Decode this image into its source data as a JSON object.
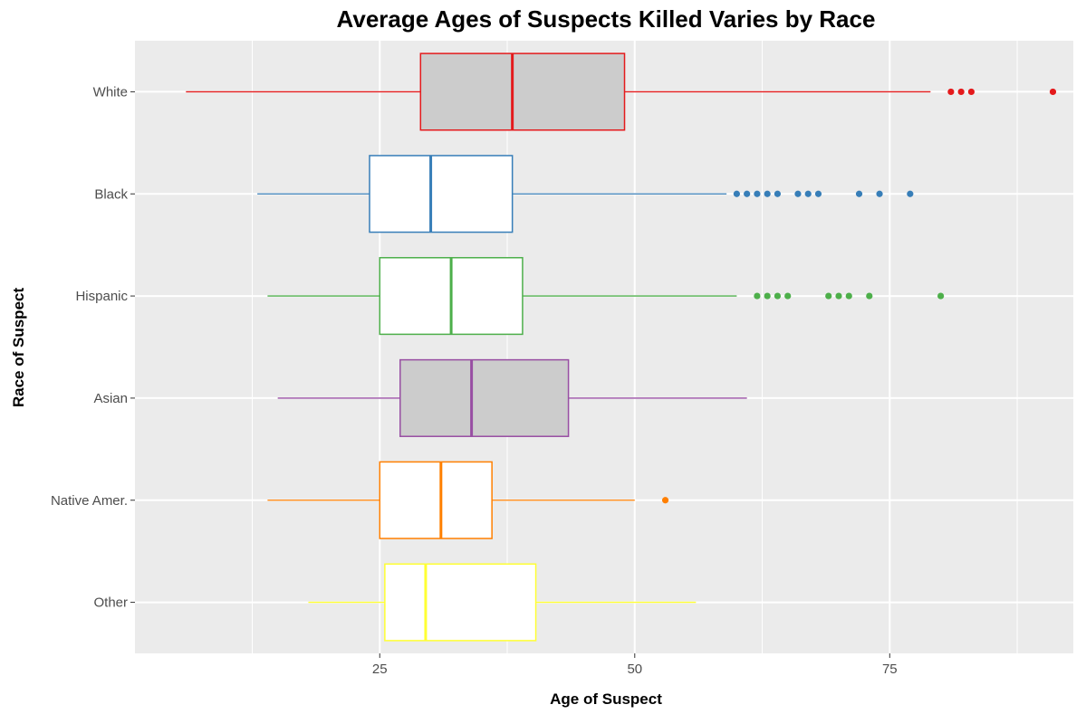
{
  "chart_data": {
    "type": "boxplot",
    "orientation": "horizontal",
    "title": "Average Ages of Suspects Killed Varies by Race",
    "xlabel": "Age of Suspect",
    "ylabel": "Race of Suspect",
    "xlim": [
      1,
      93
    ],
    "xticks": [
      25,
      50,
      75
    ],
    "xtick_labels": [
      "25",
      "50",
      "75"
    ],
    "grid": true,
    "legend": "none",
    "categories": [
      "White",
      "Black",
      "Hispanic",
      "Asian",
      "Native Amer.",
      "Other"
    ],
    "series": [
      {
        "category": "White",
        "whisker_low": 6,
        "q1": 29,
        "median": 38,
        "q3": 49,
        "whisker_high": 79,
        "outliers": [
          81,
          82,
          83,
          91
        ],
        "color": "#e41a1c",
        "fill": "#cccccc"
      },
      {
        "category": "Black",
        "whisker_low": 13,
        "q1": 24,
        "median": 30,
        "q3": 38,
        "whisker_high": 59,
        "outliers": [
          60,
          61,
          62,
          63,
          64,
          66,
          67,
          68,
          72,
          74,
          77
        ],
        "color": "#377eb8",
        "fill": "#ffffff"
      },
      {
        "category": "Hispanic",
        "whisker_low": 14,
        "q1": 25,
        "median": 32,
        "q3": 39,
        "whisker_high": 60,
        "outliers": [
          62,
          63,
          64,
          65,
          69,
          70,
          71,
          73,
          80
        ],
        "color": "#4daf4a",
        "fill": "#ffffff"
      },
      {
        "category": "Asian",
        "whisker_low": 15,
        "q1": 27,
        "median": 34,
        "q3": 43.5,
        "whisker_high": 61,
        "outliers": [],
        "color": "#984ea3",
        "fill": "#cccccc"
      },
      {
        "category": "Native Amer.",
        "whisker_low": 14,
        "q1": 25,
        "median": 31,
        "q3": 36,
        "whisker_high": 50,
        "outliers": [
          53
        ],
        "color": "#ff7f00",
        "fill": "#ffffff"
      },
      {
        "category": "Other",
        "whisker_low": 18,
        "q1": 25.5,
        "median": 29.5,
        "q3": 40.3,
        "whisker_high": 56,
        "outliers": [],
        "color": "#ffff33",
        "fill": "#ffffff"
      }
    ]
  }
}
